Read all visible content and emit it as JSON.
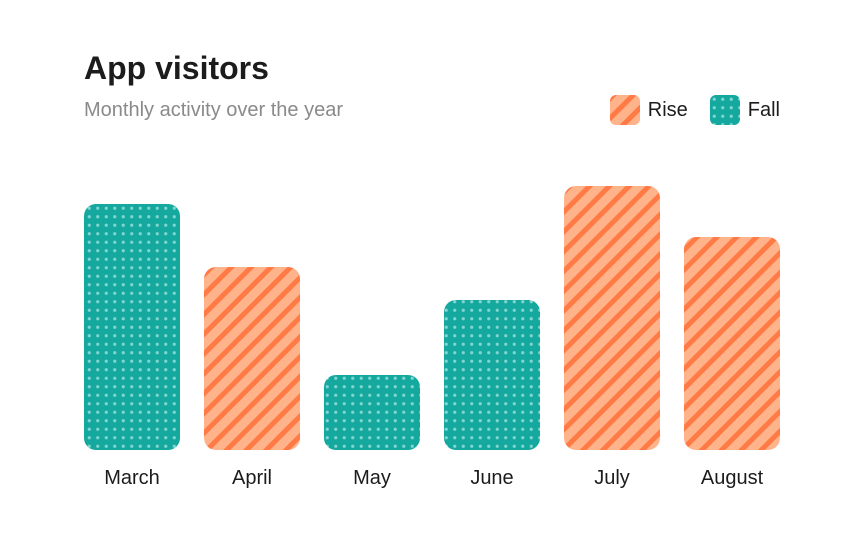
{
  "chart_data": {
    "type": "bar",
    "title": "App visitors",
    "subtitle": "Monthly activity over the year",
    "categories": [
      "March",
      "April",
      "May",
      "June",
      "July",
      "August"
    ],
    "values": [
      82,
      61,
      25,
      50,
      88,
      71
    ],
    "direction": [
      "Fall",
      "Rise",
      "Fall",
      "Fall",
      "Rise",
      "Rise"
    ],
    "legend": [
      {
        "name": "Rise",
        "color": "#ffb38a",
        "accent": "#ff7a45",
        "pattern": "diagonal-stripes"
      },
      {
        "name": "Fall",
        "color": "#14a89e",
        "accent": "#7fd6cf",
        "pattern": "dots"
      }
    ],
    "legend_position": "top-right",
    "ylim": [
      0,
      100
    ],
    "grid": false
  }
}
